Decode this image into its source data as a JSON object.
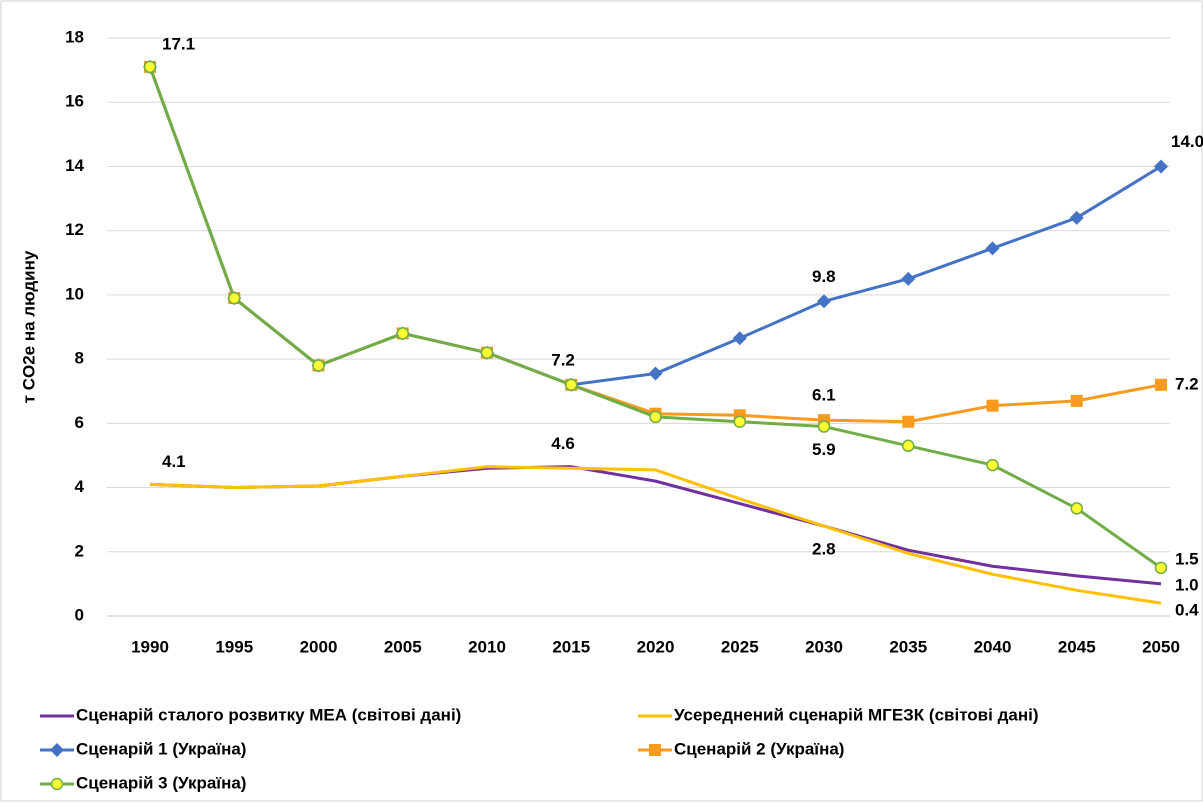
{
  "chart_data": {
    "type": "line",
    "y_label": "т CO2e на людину",
    "categories": [
      "1990",
      "1995",
      "2000",
      "2005",
      "2010",
      "2015",
      "2020",
      "2025",
      "2030",
      "2035",
      "2040",
      "2045",
      "2050"
    ],
    "ylim": [
      0,
      18
    ],
    "yticks": [
      0,
      2,
      4,
      6,
      8,
      10,
      12,
      14,
      16,
      18
    ],
    "grid": true,
    "legend": "bottom",
    "series": [
      {
        "name": "Сценарій сталого розвитку МЕА (світові дані)",
        "color": "#7030a0",
        "marker": "none",
        "values": [
          4.1,
          4.0,
          4.05,
          4.35,
          4.6,
          4.65,
          4.2,
          3.5,
          2.8,
          2.05,
          1.55,
          1.25,
          1.0
        ],
        "value_labels": [
          null,
          null,
          null,
          null,
          null,
          null,
          null,
          null,
          null,
          null,
          null,
          null,
          "1.0"
        ]
      },
      {
        "name": "Усереднений сценарій МГЕЗК (світові дані)",
        "color": "#ffc000",
        "marker": "none",
        "values": [
          4.1,
          4.0,
          4.05,
          4.35,
          4.65,
          4.6,
          4.55,
          3.65,
          2.8,
          1.95,
          1.3,
          0.8,
          0.4
        ],
        "value_labels": [
          "4.1",
          null,
          null,
          null,
          null,
          "4.6",
          null,
          null,
          "2.8",
          null,
          null,
          null,
          "0.4"
        ]
      },
      {
        "name": "Сценарій 1 (Україна)",
        "color": "#4472c4",
        "marker": "diamond",
        "values": [
          17.1,
          9.9,
          7.8,
          8.8,
          8.2,
          7.2,
          7.55,
          8.65,
          9.8,
          10.5,
          11.45,
          12.4,
          14.0
        ],
        "value_labels": [
          "17.1",
          null,
          null,
          null,
          null,
          "7.2",
          null,
          null,
          "9.8",
          null,
          null,
          null,
          "14.0"
        ]
      },
      {
        "name": "Сценарій 2 (Україна)",
        "color": "#f79a1e",
        "marker": "square",
        "values": [
          17.1,
          9.9,
          7.8,
          8.8,
          8.2,
          7.2,
          6.3,
          6.25,
          6.1,
          6.05,
          6.55,
          6.7,
          7.2
        ],
        "value_labels": [
          null,
          null,
          null,
          null,
          null,
          null,
          null,
          null,
          "6.1",
          null,
          null,
          null,
          "7.2"
        ]
      },
      {
        "name": "Сценарій 3 (Україна)",
        "color": "#70ad47",
        "marker": "circle",
        "values": [
          17.1,
          9.9,
          7.8,
          8.8,
          8.2,
          7.2,
          6.2,
          6.05,
          5.9,
          5.3,
          4.7,
          3.35,
          1.5
        ],
        "value_labels": [
          null,
          null,
          null,
          null,
          null,
          null,
          null,
          null,
          "5.9",
          null,
          null,
          null,
          "1.5"
        ]
      }
    ]
  }
}
